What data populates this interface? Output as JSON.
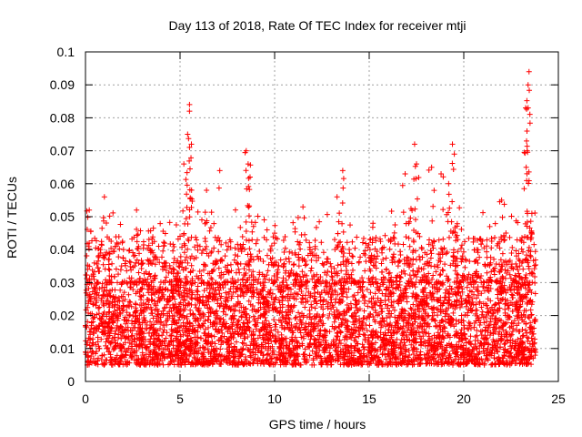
{
  "chart_data": {
    "type": "scatter",
    "title": "Day 113 of 2018, Rate Of TEC Index for receiver mtji",
    "xlabel": "GPS time / hours",
    "ylabel": "ROTI / TECUs",
    "xlim": [
      0,
      25
    ],
    "ylim": [
      0,
      0.1
    ],
    "xticks": [
      0,
      5,
      10,
      15,
      20,
      25
    ],
    "xtick_labels": [
      "0",
      "5",
      "10",
      "15",
      "20",
      "25"
    ],
    "yticks": [
      0,
      0.01,
      0.02,
      0.03,
      0.04,
      0.05,
      0.06,
      0.07,
      0.08,
      0.09,
      0.1
    ],
    "ytick_labels": [
      "0",
      "0.01",
      "0.02",
      "0.03",
      "0.04",
      "0.05",
      "0.06",
      "0.07",
      "0.08",
      "0.09",
      "0.1"
    ],
    "grid": true,
    "marker": "+",
    "marker_color": "#ff0000",
    "series": [
      {
        "name": "ROTI",
        "notable_points": [
          {
            "x": 0.2,
            "y": 0.052
          },
          {
            "x": 1.0,
            "y": 0.056
          },
          {
            "x": 2.7,
            "y": 0.052
          },
          {
            "x": 5.2,
            "y": 0.066
          },
          {
            "x": 5.4,
            "y": 0.075
          },
          {
            "x": 5.5,
            "y": 0.084
          },
          {
            "x": 5.5,
            "y": 0.082
          },
          {
            "x": 5.6,
            "y": 0.072
          },
          {
            "x": 6.4,
            "y": 0.058
          },
          {
            "x": 7.1,
            "y": 0.064
          },
          {
            "x": 8.5,
            "y": 0.07
          },
          {
            "x": 8.6,
            "y": 0.066
          },
          {
            "x": 8.7,
            "y": 0.062
          },
          {
            "x": 10.0,
            "y": 0.045
          },
          {
            "x": 13.6,
            "y": 0.064
          },
          {
            "x": 13.3,
            "y": 0.056
          },
          {
            "x": 15.2,
            "y": 0.048
          },
          {
            "x": 16.9,
            "y": 0.063
          },
          {
            "x": 17.4,
            "y": 0.072
          },
          {
            "x": 17.5,
            "y": 0.066
          },
          {
            "x": 18.3,
            "y": 0.065
          },
          {
            "x": 18.8,
            "y": 0.063
          },
          {
            "x": 19.2,
            "y": 0.06
          },
          {
            "x": 19.4,
            "y": 0.072
          },
          {
            "x": 19.5,
            "y": 0.069
          },
          {
            "x": 22.0,
            "y": 0.055
          },
          {
            "x": 23.3,
            "y": 0.065
          },
          {
            "x": 23.35,
            "y": 0.07
          },
          {
            "x": 23.4,
            "y": 0.083
          },
          {
            "x": 23.4,
            "y": 0.09
          },
          {
            "x": 23.45,
            "y": 0.094
          },
          {
            "x": 23.6,
            "y": 0.051
          }
        ],
        "bulk_range_y": [
          0.005,
          0.03
        ],
        "x_range": [
          0,
          23.8
        ]
      }
    ]
  }
}
